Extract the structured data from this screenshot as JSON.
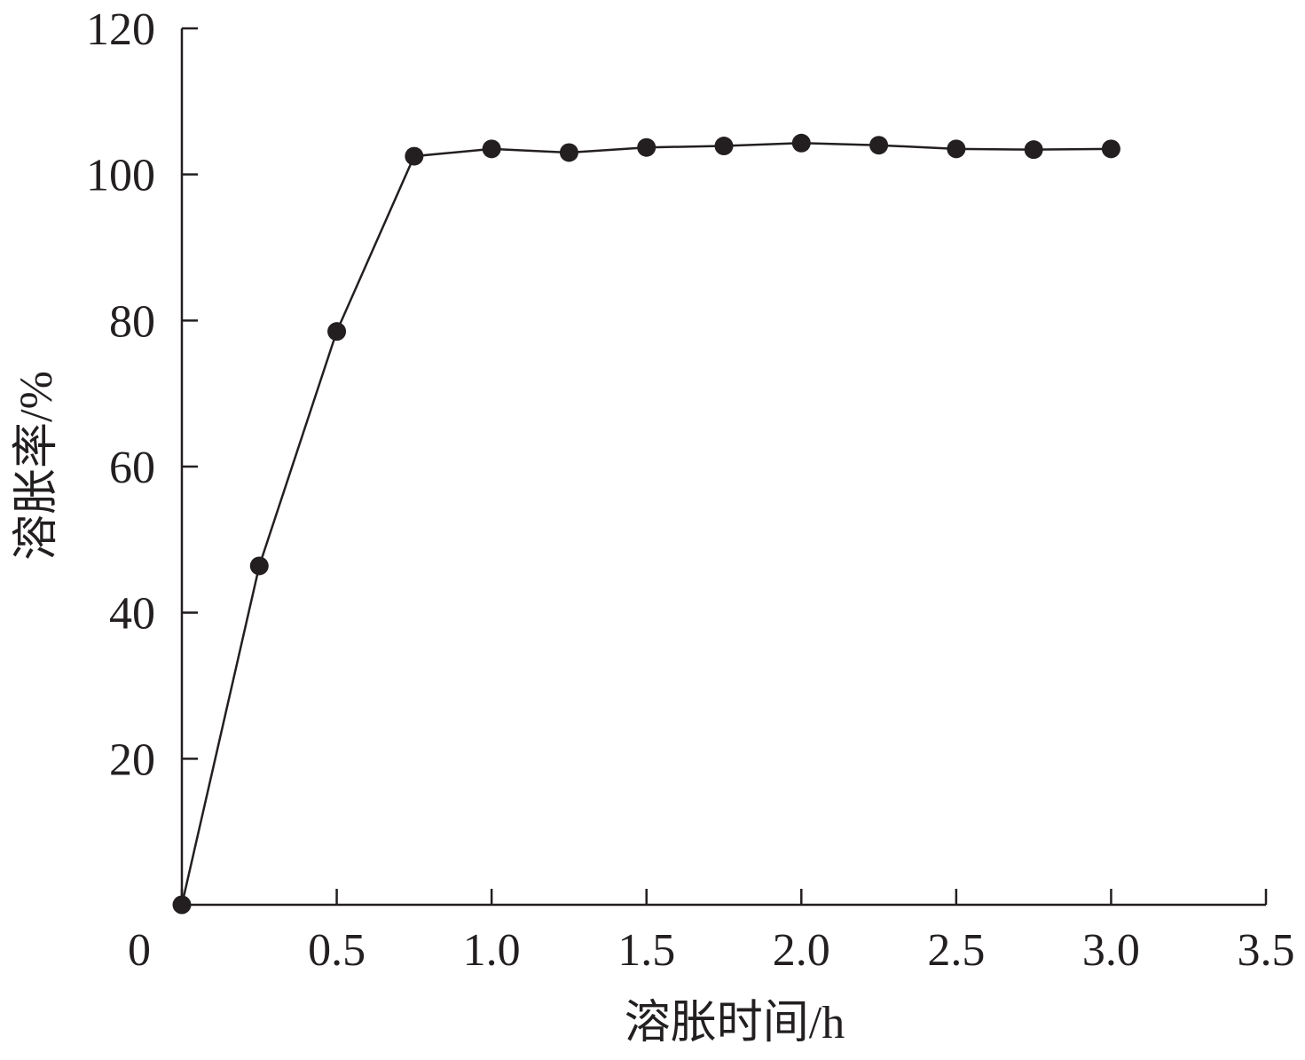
{
  "chart_data": {
    "type": "line",
    "x_label": "溶胀时间/h",
    "y_label": "溶胀率/%",
    "x": [
      0,
      0.25,
      0.5,
      0.75,
      1.0,
      1.25,
      1.5,
      1.75,
      2.0,
      2.25,
      2.5,
      2.75,
      3.0
    ],
    "series": [
      {
        "name": "溶胀率",
        "color": "#231f20",
        "values": [
          0,
          46.4,
          78.5,
          102.5,
          103.5,
          103.0,
          103.7,
          103.9,
          104.3,
          104.0,
          103.5,
          103.4,
          103.5
        ]
      }
    ],
    "xlim": [
      0,
      3.5
    ],
    "xticks": [
      0,
      0.5,
      {
        "value": 1,
        "label": "1.0"
      },
      1.5,
      {
        "value": 2,
        "label": "2.0"
      },
      2.5,
      {
        "value": 3,
        "label": "3.0"
      },
      3.5
    ],
    "ylim": [
      0,
      120
    ],
    "yticks": [
      20,
      40,
      60,
      80,
      100,
      120
    ],
    "grid": false
  }
}
